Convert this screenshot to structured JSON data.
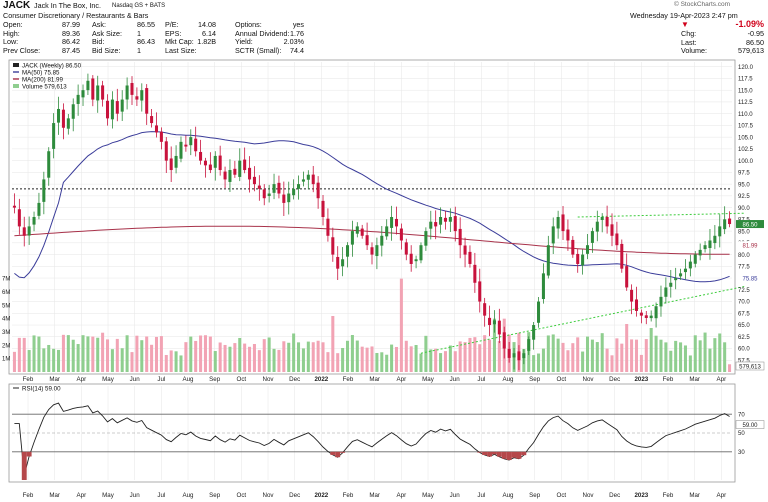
{
  "header": {
    "symbol": "JACK",
    "company": "Jack In The Box, Inc.",
    "exchange": "Nasdaq GS + BATS",
    "sector": "Consumer Discretionary / Restaurants & Bars",
    "watermark": "© StockCharts.com",
    "date": "Wednesday 19-Apr-2023 2:47 pm",
    "quote": [
      {
        "label": "Open:",
        "value": "87.99"
      },
      {
        "label": "High:",
        "value": "89.36"
      },
      {
        "label": "Low:",
        "value": "86.42"
      },
      {
        "label": "Prev Close:",
        "value": "87.45"
      }
    ],
    "book": [
      {
        "label": "Ask:",
        "value": "86.55"
      },
      {
        "label": "Ask Size:",
        "value": "1"
      },
      {
        "label": "Bid:",
        "value": "86.43"
      },
      {
        "label": "Bid Size:",
        "value": "1"
      }
    ],
    "stats": [
      {
        "label": "P/E:",
        "value": "14.08"
      },
      {
        "label": "EPS:",
        "value": "6.14"
      },
      {
        "label": "Mkt Cap:",
        "value": "1.82B"
      },
      {
        "label": "Last Size:",
        "value": ""
      }
    ],
    "fund": [
      {
        "label": "Options:",
        "value": "yes"
      },
      {
        "label": "Annual Dividend:",
        "value": "1.76"
      },
      {
        "label": "Yield:",
        "value": "2.03%"
      },
      {
        "label": "SCTR (Small):",
        "value": "74.4"
      }
    ],
    "change_pct": "-1.09%",
    "last_block": [
      {
        "label": "Chg:",
        "value": "-0.95"
      },
      {
        "label": "Last:",
        "value": "86.50"
      },
      {
        "label": "Volume:",
        "value": "579,613"
      }
    ]
  },
  "legend": {
    "line1": "JACK (Weekly) 86.50",
    "line2": "MA(50) 75.85",
    "line3": "MA(200) 81.99",
    "line4": "Volume 579,613"
  },
  "colors": {
    "up": "#2e8b3c",
    "down": "#c8123c",
    "ma50": "#3b3d9a",
    "ma200": "#a8324a",
    "vol_up": "#8fce8f",
    "vol_down": "#f2a3b4",
    "trend": "#3ccc3c",
    "grid": "#e6e6e6"
  },
  "chart_data": [
    {
      "type": "candlestick",
      "title": "JACK (Weekly) 86.50",
      "ylim": [
        55,
        121
      ],
      "y_ticks": [
        "57.5",
        "60.0",
        "62.5",
        "65.0",
        "67.5",
        "70.0",
        "72.5",
        "75.0",
        "77.5",
        "80.0",
        "82.5",
        "85.0",
        "87.5",
        "90.0",
        "92.5",
        "95.0",
        "97.5",
        "100.0",
        "102.5",
        "105.0",
        "107.5",
        "110.0",
        "112.5",
        "115.0",
        "117.5",
        "120.0"
      ],
      "x_ticks": [
        "Feb",
        "Mar",
        "Apr",
        "May",
        "Jun",
        "Jul",
        "Aug",
        "Sep",
        "Oct",
        "Nov",
        "Dec",
        "2022",
        "Feb",
        "Mar",
        "Apr",
        "May",
        "Jun",
        "Jul",
        "Aug",
        "Sep",
        "Oct",
        "Nov",
        "Dec",
        "2023",
        "Feb",
        "Mar",
        "Apr"
      ],
      "closes": [
        90.0,
        86.0,
        84.0,
        86.0,
        88.0,
        91.0,
        96.0,
        102.0,
        108.0,
        111.0,
        107.0,
        109.0,
        112.0,
        114.0,
        115.0,
        117.0,
        113.0,
        116.0,
        113.0,
        109.0,
        113.0,
        110.0,
        113.0,
        116.0,
        114.0,
        113.0,
        115.0,
        110.0,
        108.0,
        106.0,
        104.0,
        100.0,
        98.0,
        101.0,
        104.0,
        103.0,
        105.0,
        102.0,
        100.0,
        99.0,
        98.0,
        101.0,
        98.0,
        96.0,
        98.0,
        97.0,
        100.0,
        98.0,
        96.0,
        95.0,
        94.0,
        92.0,
        93.0,
        95.0,
        93.0,
        91.0,
        93.0,
        94.0,
        95.0,
        96.0,
        97.0,
        95.0,
        92.0,
        88.0,
        84.0,
        80.0,
        77.0,
        79.0,
        82.0,
        85.0,
        86.0,
        84.0,
        82.0,
        80.0,
        82.0,
        84.0,
        86.0,
        88.0,
        86.0,
        83.0,
        80.0,
        78.0,
        79.0,
        82.0,
        85.0,
        87.0,
        86.0,
        88.0,
        87.0,
        88.0,
        85.0,
        82.0,
        80.0,
        78.0,
        74.0,
        70.0,
        67.0,
        65.0,
        66.0,
        63.0,
        60.0,
        58.0,
        59.0,
        57.5,
        59.0,
        62.0,
        65.0,
        70.0,
        76.0,
        82.0,
        86.0,
        88.0,
        85.0,
        83.0,
        80.0,
        78.0,
        80.0,
        82.0,
        85.0,
        87.0,
        88.0,
        86.0,
        84.0,
        82.0,
        77.0,
        73.0,
        70.0,
        68.0,
        67.0,
        66.5,
        67.0,
        69.0,
        71.0,
        73.0,
        74.0,
        75.0,
        76.0,
        77.0,
        78.5,
        80.0,
        81.0,
        82.0,
        83.0,
        84.0,
        86.0,
        87.5,
        86.5
      ],
      "last_price": "86.50",
      "ma50_value": "75.85",
      "ma200_value": "81.99",
      "horizontal_line": 94.0,
      "trendlines": [
        {
          "x1": 83,
          "y1": 59.0,
          "x2": 150,
          "y2": 73.2
        },
        {
          "x1": 115,
          "y1": 88.0,
          "x2": 150,
          "y2": 88.8
        }
      ],
      "volume_ticks": [
        "1M",
        "2M",
        "3M",
        "4M",
        "5M",
        "6M",
        "7M"
      ],
      "volume_last": "579,613"
    },
    {
      "type": "line",
      "title": "RSI(14) 59.00",
      "ylim": [
        0,
        100
      ],
      "y_ticks": [
        "30",
        "50",
        "70"
      ],
      "guides": [
        30,
        70
      ],
      "last_value": "59.00"
    }
  ]
}
